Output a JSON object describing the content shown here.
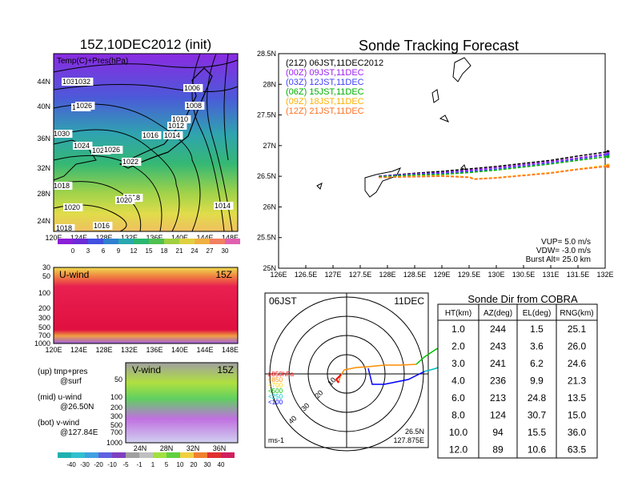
{
  "left_map": {
    "title": "15Z,10DEC2012 (init)",
    "label": "Temp(C)+Pres(hPa)",
    "lat_labels": [
      "44N",
      "40N",
      "36N",
      "32N",
      "28N",
      "24N"
    ],
    "lon_labels": [
      "120E",
      "124E",
      "128E",
      "132E",
      "136E",
      "140E",
      "144E",
      "148E"
    ],
    "isobar_labels": [
      "1034",
      "1032",
      "1030",
      "1024",
      "1026",
      "1006",
      "1008",
      "1010",
      "1012",
      "1014",
      "1016",
      "1018",
      "1018",
      "1020",
      "1022",
      "1024",
      "1026",
      "1030",
      "1020",
      "1018",
      "1016",
      "1014"
    ],
    "colorbar": [
      "0",
      "3",
      "6",
      "9",
      "12",
      "15",
      "18",
      "21",
      "24",
      "27",
      "30"
    ]
  },
  "uwind": {
    "label": "U-wind",
    "time": "15Z",
    "levels": [
      "30",
      "50",
      "100",
      "200",
      "300",
      "500",
      "700",
      "1000"
    ],
    "lon_labels": [
      "120E",
      "124E",
      "128E",
      "132E",
      "136E",
      "140E",
      "144E",
      "148E"
    ]
  },
  "vwind": {
    "label": "V-wind",
    "time": "15Z",
    "levels": [
      "50",
      "100",
      "200",
      "300",
      "500",
      "700",
      "1000"
    ],
    "lat_labels": [
      "24N",
      "28N",
      "32N",
      "36N"
    ],
    "colorbar": [
      "-40",
      "-30",
      "-20",
      "-10",
      "-5",
      "-1",
      "1",
      "5",
      "10",
      "20",
      "30",
      "40"
    ]
  },
  "legend_notes": {
    "up": "(up) tmp+pres",
    "up2": "@surf",
    "mid": "(mid) u-wind",
    "mid2": "@26.50N",
    "bot": "(bot) v-wind",
    "bot2": "@127.84E"
  },
  "chart_data": [
    {
      "type": "line",
      "title": "Sonde Tracking Forecast",
      "xlim": [
        126,
        132
      ],
      "ylim": [
        25,
        28.5
      ],
      "x_ticks": [
        "126E",
        "126.5E",
        "127E",
        "127.5E",
        "128E",
        "128.5E",
        "129E",
        "129.5E",
        "130E",
        "130.5E",
        "131E",
        "131.5E",
        "132E"
      ],
      "y_ticks": [
        "25N",
        "25.5N",
        "26N",
        "26.5N",
        "27N",
        "27.5N",
        "28N",
        "28.5N"
      ],
      "series": [
        {
          "name": "(21Z) 06JST,11DEC2012",
          "color": "#000000",
          "x": [
            127.84,
            128.5,
            129.0,
            129.5,
            130.0,
            130.5,
            131.0,
            131.5,
            132.05
          ],
          "y": [
            26.5,
            26.55,
            26.58,
            26.62,
            26.66,
            26.71,
            26.76,
            26.83,
            26.9
          ]
        },
        {
          "name": "(00Z) 09JST,11DEC",
          "color": "#a020f0",
          "x": [
            127.84,
            128.5,
            129.0,
            129.5,
            130.0,
            130.5,
            131.0,
            131.5,
            132.05
          ],
          "y": [
            26.5,
            26.54,
            26.56,
            26.6,
            26.64,
            26.69,
            26.74,
            26.8,
            26.87
          ]
        },
        {
          "name": "(03Z) 12JST,11DEC",
          "color": "#4040ff",
          "x": [
            127.84,
            128.5,
            129.0,
            129.5,
            130.0,
            130.5,
            131.0,
            131.5,
            132.05
          ],
          "y": [
            26.5,
            26.53,
            26.55,
            26.58,
            26.62,
            26.67,
            26.72,
            26.78,
            26.85
          ]
        },
        {
          "name": "(06Z) 15JST,11DEC",
          "color": "#00b000",
          "x": [
            127.84,
            128.5,
            129.0,
            129.5,
            130.0,
            130.5,
            131.0,
            131.5,
            132.05
          ],
          "y": [
            26.49,
            26.52,
            26.53,
            26.56,
            26.6,
            26.65,
            26.7,
            26.76,
            26.82
          ]
        },
        {
          "name": "(09Z) 18JST,11DEC",
          "color": "#ffb000",
          "x": [
            127.84,
            128.5,
            129.0,
            129.5,
            129.6,
            130.0,
            130.5,
            131.0,
            131.5,
            132.05
          ],
          "y": [
            26.48,
            26.5,
            26.51,
            26.49,
            26.46,
            26.48,
            26.52,
            26.56,
            26.62,
            26.68
          ]
        },
        {
          "name": "(12Z) 21JST,11DEC",
          "color": "#ff7020",
          "x": [
            127.84,
            128.5,
            129.0,
            129.5,
            129.6,
            130.0,
            130.5,
            131.0,
            131.5,
            132.05
          ],
          "y": [
            26.48,
            26.49,
            26.5,
            26.48,
            26.45,
            26.47,
            26.51,
            26.55,
            26.61,
            26.66
          ]
        }
      ],
      "annotations": [
        "VUP= 5.0 m/s",
        "VDW= -3.0 m/s",
        "Burst Alt= 25.0 km"
      ]
    },
    {
      "type": "table",
      "title": "Sonde Dir from COBRA",
      "headers": [
        "HT(km)",
        "AZ(deg)",
        "EL(deg)",
        "RNG(km)"
      ],
      "rows": [
        [
          "1.0",
          "244",
          "1.5",
          "25.1"
        ],
        [
          "2.0",
          "243",
          "3.6",
          "26.0"
        ],
        [
          "3.0",
          "241",
          "6.2",
          "24.6"
        ],
        [
          "4.0",
          "236",
          "9.9",
          "21.3"
        ],
        [
          "6.0",
          "213",
          "24.8",
          "13.5"
        ],
        [
          "8.0",
          "124",
          "30.7",
          "15.0"
        ],
        [
          "10.0",
          "94",
          "15.5",
          "36.0"
        ],
        [
          "12.0",
          "89",
          "10.6",
          "63.5"
        ]
      ]
    }
  ],
  "polar": {
    "time": "06JST",
    "date": "11DEC",
    "ring_labels": [
      "10",
      "20",
      "30",
      "40"
    ],
    "units": "ms-1",
    "loc_lat": "26.5N",
    "loc_lon": "127.875E",
    "levels": [
      "≥850hPa",
      "<850",
      "<700",
      "<500",
      "<250",
      "<100"
    ],
    "level_colors": [
      "#ff0000",
      "#ff8c00",
      "#ffd700",
      "#00c000",
      "#00c0c0",
      "#0000ff"
    ]
  }
}
